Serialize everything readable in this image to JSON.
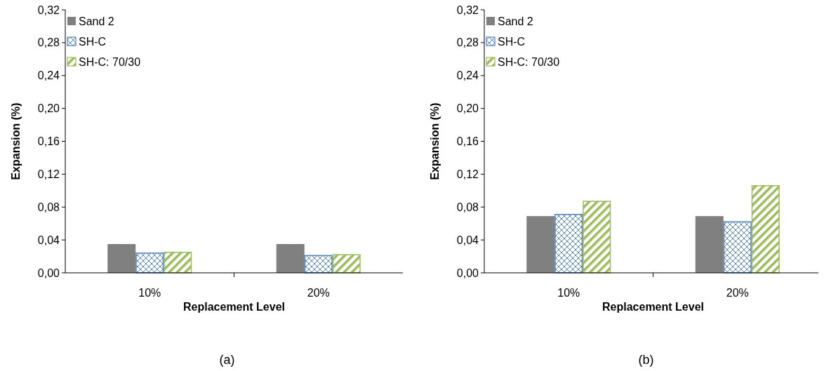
{
  "chart_data": [
    {
      "type": "bar",
      "xlabel": "Replacement Level",
      "ylabel": "Expansion (%)",
      "categories": [
        "10%",
        "20%"
      ],
      "series": [
        {
          "name": "Sand 2",
          "color": "#808080",
          "values": [
            0.035,
            0.035
          ]
        },
        {
          "name": "SH-C",
          "color": "#4f81bd",
          "values": [
            0.024,
            0.021
          ]
        },
        {
          "name": "SH-C: 70/30",
          "color": "#9bbb59",
          "values": [
            0.025,
            0.022
          ]
        }
      ],
      "ylim": [
        0,
        0.32
      ],
      "yticks": [
        {
          "value": 0,
          "label": "0,00"
        },
        {
          "value": 0.04,
          "label": "0,04"
        },
        {
          "value": 0.08,
          "label": "0,08"
        },
        {
          "value": 0.12,
          "label": "0,12"
        },
        {
          "value": 0.16,
          "label": "0,16"
        },
        {
          "value": 0.2,
          "label": "0,20"
        },
        {
          "value": 0.24,
          "label": "0,24"
        },
        {
          "value": 0.28,
          "label": "0,28"
        },
        {
          "value": 0.32,
          "label": "0,32"
        }
      ],
      "legend": "top left",
      "annotations": [
        "(a)"
      ]
    },
    {
      "type": "bar",
      "xlabel": "Replacement Level",
      "ylabel": "Expansion (%)",
      "categories": [
        "10%",
        "20%"
      ],
      "series": [
        {
          "name": "Sand 2",
          "color": "#808080",
          "values": [
            0.069,
            0.069
          ]
        },
        {
          "name": "SH-C",
          "color": "#4f81bd",
          "values": [
            0.071,
            0.062
          ]
        },
        {
          "name": "SH-C: 70/30",
          "color": "#9bbb59",
          "values": [
            0.087,
            0.106
          ]
        }
      ],
      "ylim": [
        0,
        0.32
      ],
      "yticks": [
        {
          "value": 0,
          "label": "0,00"
        },
        {
          "value": 0.04,
          "label": "0,04"
        },
        {
          "value": 0.08,
          "label": "0,08"
        },
        {
          "value": 0.12,
          "label": "0,12"
        },
        {
          "value": 0.16,
          "label": "0,16"
        },
        {
          "value": 0.2,
          "label": "0,20"
        },
        {
          "value": 0.24,
          "label": "0,24"
        },
        {
          "value": 0.28,
          "label": "0,28"
        },
        {
          "value": 0.32,
          "label": "0,32"
        }
      ],
      "legend": "top left",
      "annotations": [
        "(b)"
      ]
    }
  ]
}
